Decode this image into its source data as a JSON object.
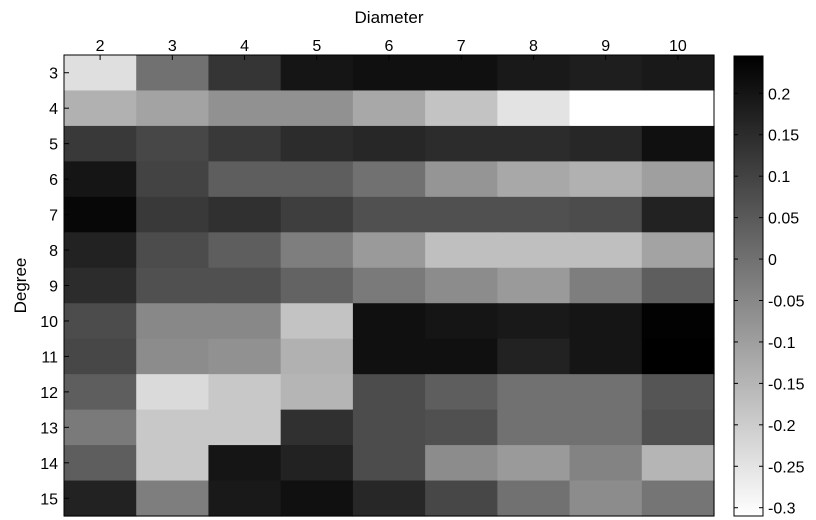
{
  "chart_data": {
    "type": "heatmap",
    "title": "",
    "xlabel": "Diameter",
    "ylabel": "Degree",
    "x_categories": [
      "2",
      "3",
      "4",
      "5",
      "6",
      "7",
      "8",
      "9",
      "10"
    ],
    "y_categories": [
      "3",
      "4",
      "5",
      "6",
      "7",
      "8",
      "9",
      "10",
      "11",
      "12",
      "13",
      "14",
      "15"
    ],
    "colormap": "gray_reversed",
    "color_low": "#ffffff",
    "color_high": "#000000",
    "colorbar_range": [
      -0.31,
      0.245
    ],
    "colorbar_ticks": [
      "0.2",
      "0.15",
      "0.1",
      "0.05",
      "0",
      "-0.05",
      "-0.1",
      "-0.15",
      "-0.2",
      "-0.25",
      "-0.3"
    ],
    "colorbar_tick_values": [
      0.2,
      0.15,
      0.1,
      0.05,
      0,
      -0.05,
      -0.1,
      -0.15,
      -0.2,
      -0.25,
      -0.3
    ],
    "values": [
      [
        -0.24,
        0.0,
        0.13,
        0.2,
        0.21,
        0.21,
        0.19,
        0.18,
        0.19
      ],
      [
        -0.14,
        -0.11,
        -0.07,
        -0.07,
        -0.12,
        -0.18,
        -0.25,
        -0.31,
        -0.31
      ],
      [
        0.12,
        0.09,
        0.12,
        0.15,
        0.16,
        0.15,
        0.15,
        0.16,
        0.21
      ],
      [
        0.2,
        0.1,
        0.04,
        0.04,
        0.0,
        -0.08,
        -0.12,
        -0.14,
        -0.1
      ],
      [
        0.23,
        0.12,
        0.14,
        0.11,
        0.07,
        0.07,
        0.07,
        0.08,
        0.17
      ],
      [
        0.17,
        0.08,
        0.04,
        -0.03,
        -0.09,
        -0.17,
        -0.17,
        -0.17,
        -0.11
      ],
      [
        0.15,
        0.07,
        0.07,
        0.03,
        -0.02,
        -0.06,
        -0.09,
        -0.03,
        0.04
      ],
      [
        0.08,
        -0.05,
        -0.05,
        -0.18,
        0.21,
        0.2,
        0.19,
        0.2,
        0.24
      ],
      [
        0.09,
        -0.06,
        -0.07,
        -0.14,
        0.21,
        0.21,
        0.17,
        0.2,
        0.245
      ],
      [
        0.04,
        -0.23,
        -0.19,
        -0.15,
        0.08,
        0.04,
        0.0,
        0.0,
        0.06
      ],
      [
        -0.02,
        -0.19,
        -0.19,
        0.14,
        0.08,
        0.07,
        0.0,
        0.0,
        0.07
      ],
      [
        0.04,
        -0.19,
        0.2,
        0.17,
        0.08,
        -0.06,
        -0.09,
        -0.04,
        -0.15
      ],
      [
        0.17,
        -0.03,
        0.19,
        0.21,
        0.16,
        0.09,
        0.0,
        -0.06,
        -0.01
      ]
    ]
  }
}
